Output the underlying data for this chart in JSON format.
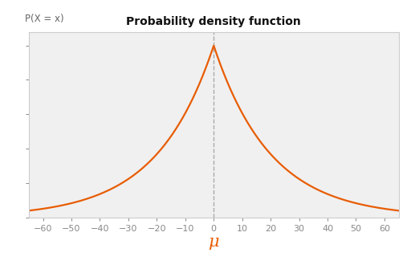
{
  "title": "Probability density function",
  "ylabel": "P(X = x)",
  "xlabel": "μ",
  "mu": 0,
  "b": 20,
  "xlim": [
    -65,
    65
  ],
  "x_ticks": [
    -60,
    -50,
    -40,
    -30,
    -20,
    -10,
    0,
    10,
    20,
    30,
    40,
    50,
    60
  ],
  "line_color": "#e85d04",
  "dashed_line_color": "#aaaaaa",
  "plot_bg_color": "#f0f0f0",
  "fig_bg_color": "#ffffff",
  "title_fontsize": 10,
  "ylabel_fontsize": 8.5,
  "xlabel_fontsize": 15,
  "xlabel_color": "#e85d04",
  "tick_fontsize": 8,
  "tick_color": "#888888",
  "spine_color": "#cccccc"
}
